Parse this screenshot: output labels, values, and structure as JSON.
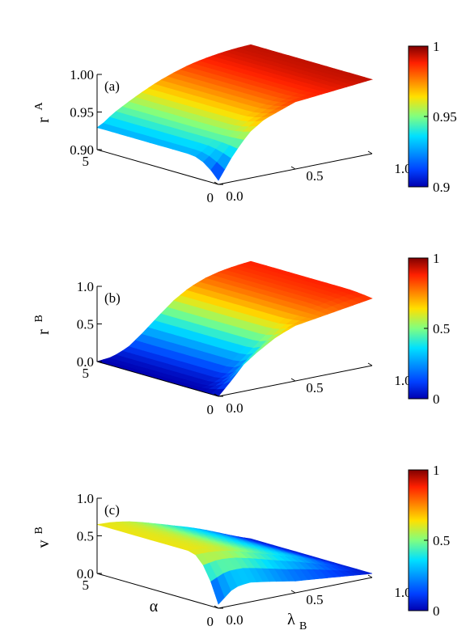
{
  "chart_data": [
    {
      "type": "surface",
      "panel_label": "(a)",
      "zlabel": "r",
      "zlabel_sup": "A",
      "xlabel": "",
      "ylabel": "",
      "z_ticks": [
        "0.90",
        "0.95",
        "1.00"
      ],
      "z_range": [
        0.9,
        1.0
      ],
      "lambda_ticks": [
        "0.0",
        "0.5",
        "1.0"
      ],
      "alpha_ticks": [
        "0",
        "5"
      ],
      "lambda_range": [
        0,
        1
      ],
      "alpha_range": [
        0,
        5
      ],
      "colorbar_ticks": [
        "0.9",
        "0.95",
        "1"
      ],
      "colorbar_range": [
        0.9,
        1.0
      ],
      "profile_lambda": [
        0.0,
        0.05,
        0.1,
        0.2,
        0.3,
        0.4,
        0.5,
        0.6,
        0.7,
        0.8,
        0.9,
        1.0
      ],
      "profile_values": [
        0.928,
        0.933,
        0.941,
        0.952,
        0.962,
        0.971,
        0.978,
        0.984,
        0.988,
        0.991,
        0.993,
        0.994
      ],
      "alpha0_lambda": [
        0.0,
        0.1,
        0.2,
        0.3,
        0.5,
        1.0
      ],
      "alpha0_values": [
        0.905,
        0.935,
        0.958,
        0.971,
        0.985,
        0.994
      ]
    },
    {
      "type": "surface",
      "panel_label": "(b)",
      "zlabel": "r",
      "zlabel_sup": "B",
      "xlabel": "",
      "ylabel": "",
      "z_ticks": [
        "0.0",
        "0.5",
        "1.0"
      ],
      "z_range": [
        0.0,
        1.0
      ],
      "lambda_ticks": [
        "0.0",
        "0.5",
        "1.0"
      ],
      "alpha_ticks": [
        "0",
        "5"
      ],
      "lambda_range": [
        0,
        1
      ],
      "alpha_range": [
        0,
        5
      ],
      "colorbar_ticks": [
        "0",
        "0.5",
        "1"
      ],
      "colorbar_range": [
        0,
        1
      ],
      "profile_lambda": [
        0.0,
        0.1,
        0.2,
        0.3,
        0.4,
        0.5,
        0.6,
        0.7,
        0.8,
        0.9,
        1.0
      ],
      "profile_values": [
        0.0,
        0.02,
        0.1,
        0.25,
        0.42,
        0.58,
        0.7,
        0.78,
        0.83,
        0.86,
        0.88
      ],
      "alpha0_lambda": [
        0.0,
        0.1,
        0.2,
        0.3,
        0.5,
        1.0
      ],
      "alpha0_values": [
        0.0,
        0.2,
        0.42,
        0.55,
        0.7,
        0.85
      ]
    },
    {
      "type": "surface",
      "panel_label": "(c)",
      "zlabel": "v",
      "zlabel_sup": "B",
      "xlabel": "λ",
      "xlabel_sub": "B",
      "ylabel": "α",
      "z_ticks": [
        "0.0",
        "0.5",
        "1.0"
      ],
      "z_range": [
        0.0,
        1.0
      ],
      "lambda_ticks": [
        "0.0",
        "0.5",
        "1.0"
      ],
      "alpha_ticks": [
        "0",
        "5"
      ],
      "lambda_range": [
        0,
        1
      ],
      "alpha_range": [
        0,
        5
      ],
      "colorbar_ticks": [
        "0",
        "0.5",
        "1"
      ],
      "colorbar_range": [
        0,
        1
      ],
      "profile_lambda": [
        0.0,
        0.1,
        0.2,
        0.3,
        0.4,
        0.5,
        0.6,
        0.7,
        0.8,
        0.9,
        1.0
      ],
      "profile_values": [
        0.62,
        0.61,
        0.58,
        0.53,
        0.47,
        0.41,
        0.35,
        0.28,
        0.2,
        0.12,
        0.05
      ],
      "alpha0_lambda": [
        0.0,
        0.1,
        0.2,
        0.3,
        0.5,
        1.0
      ],
      "alpha0_values": [
        0.05,
        0.22,
        0.25,
        0.22,
        0.15,
        0.05
      ]
    }
  ]
}
